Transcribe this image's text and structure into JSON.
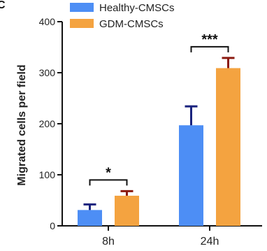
{
  "panel_label": "C",
  "colors": {
    "healthy": "#4d8ef5",
    "gdm": "#f4a340",
    "healthy_err": "#1a237e",
    "gdm_err": "#8b1a10",
    "axis": "#111111"
  },
  "chart_data": {
    "type": "bar",
    "categories": [
      "8h",
      "24h"
    ],
    "series": [
      {
        "name": "Healthy-CMSCs",
        "values": [
          31,
          197
        ],
        "errors": [
          11,
          37
        ]
      },
      {
        "name": "GDM-CMSCs",
        "values": [
          59,
          309
        ],
        "errors": [
          9,
          20
        ]
      }
    ],
    "ylabel": "Migrated cells per field",
    "xlabel": "",
    "ylim": [
      0,
      400
    ],
    "yticks": [
      0,
      100,
      200,
      300,
      400
    ],
    "legend": "top-left",
    "grid": false,
    "significance": [
      {
        "category": "8h",
        "label": "*"
      },
      {
        "category": "24h",
        "label": "***"
      }
    ]
  }
}
